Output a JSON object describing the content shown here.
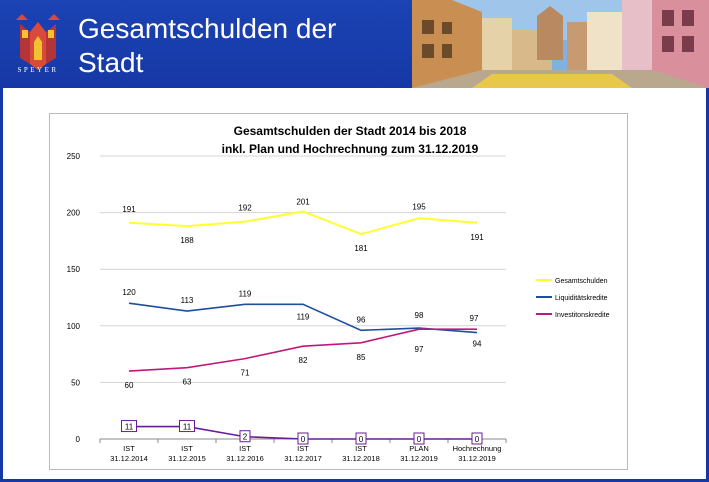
{
  "header": {
    "title": "Gesamtschulden der Stadt",
    "logo_text": "SPEYER"
  },
  "chart_data": {
    "type": "line",
    "title_lines": [
      "Gesamtschulden der Stadt 2014 bis 2018",
      "inkl. Plan und Hochrechnung zum 31.12.2019"
    ],
    "categories": [
      [
        "IST",
        "31.12.2014"
      ],
      [
        "IST",
        "31.12.2015"
      ],
      [
        "IST",
        "31.12.2016"
      ],
      [
        "IST",
        "31.12.2017"
      ],
      [
        "IST",
        "31.12.2018"
      ],
      [
        "PLAN",
        "31.12.2019"
      ],
      [
        "Hochrechnung",
        "31.12.2019"
      ]
    ],
    "ylim": [
      0,
      250
    ],
    "yticks": [
      0,
      50,
      100,
      150,
      200,
      250
    ],
    "grid": "horizontal",
    "legend_position": "right",
    "series": [
      {
        "name": "Gesamtschulden",
        "color": "#ffff33",
        "values": [
          191,
          188,
          192,
          201,
          181,
          195,
          191
        ]
      },
      {
        "name": "Liquiditätskredite",
        "color": "#1f4e9c",
        "values": [
          120,
          113,
          119,
          119,
          96,
          98,
          94
        ]
      },
      {
        "name": "Investitonskredite",
        "color": "#c0187a",
        "values": [
          60,
          63,
          71,
          82,
          85,
          97,
          97
        ]
      },
      {
        "name": "",
        "color": "#6a1b9a",
        "values": [
          11,
          11,
          2,
          0,
          0,
          0,
          0
        ]
      }
    ]
  }
}
